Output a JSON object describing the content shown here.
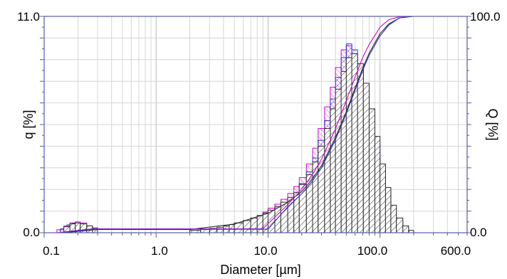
{
  "chart_data": {
    "type": "bar",
    "xlabel": "Diameter [µm]",
    "ylabel_left": "q [%]",
    "ylabel_right": "Q [%]",
    "x_scale": "log",
    "xlim": [
      0.1,
      600.0
    ],
    "ylim_left": [
      0.0,
      11.0
    ],
    "ylim_right": [
      0.0,
      100.0
    ],
    "x_tick_labels": [
      "0.1",
      "1.0",
      "10.0",
      "100.0",
      "600.0"
    ],
    "y_left_tick_labels": [
      "0.0",
      "11.0"
    ],
    "y_right_tick_labels": [
      "0.0",
      "100.0"
    ],
    "grid": true,
    "colors": {
      "frame": "#5b5ba8",
      "grid": "#c8c8c8",
      "series1": "#2b2b2b",
      "series2": "#d400d4",
      "series3": "#3030c0"
    },
    "series": [
      {
        "style": "black-hatched",
        "bins": [
          [
            0.15,
            0.17,
            0.3
          ],
          [
            0.17,
            0.19,
            0.45
          ],
          [
            0.19,
            0.21,
            0.5
          ],
          [
            0.21,
            0.24,
            0.45
          ],
          [
            0.24,
            0.27,
            0.35
          ],
          [
            0.27,
            0.3,
            0.25
          ],
          [
            2.0,
            2.5,
            0.12
          ],
          [
            2.5,
            3.0,
            0.17
          ],
          [
            3.0,
            3.5,
            0.22
          ],
          [
            3.5,
            4.0,
            0.28
          ],
          [
            4.0,
            4.5,
            0.34
          ],
          [
            4.5,
            5.0,
            0.41
          ],
          [
            5.0,
            6.0,
            0.5
          ],
          [
            6.0,
            7.0,
            0.62
          ],
          [
            7.0,
            8.0,
            0.75
          ],
          [
            8.0,
            9.0,
            0.88
          ],
          [
            9.0,
            10.0,
            1.0
          ],
          [
            10.0,
            11.5,
            1.15
          ],
          [
            11.5,
            13.0,
            1.33
          ],
          [
            13.0,
            15.0,
            1.55
          ],
          [
            15.0,
            17.0,
            1.8
          ],
          [
            17.0,
            19.0,
            2.05
          ],
          [
            19.0,
            22.0,
            2.45
          ],
          [
            22.0,
            25.0,
            2.95
          ],
          [
            25.0,
            28.0,
            3.6
          ],
          [
            28.0,
            32.0,
            4.4
          ],
          [
            32.0,
            36.0,
            5.3
          ],
          [
            36.0,
            40.0,
            6.3
          ],
          [
            40.0,
            45.0,
            7.3
          ],
          [
            45.0,
            50.0,
            8.2
          ],
          [
            50.0,
            56.0,
            8.9
          ],
          [
            56.0,
            63.0,
            9.1
          ],
          [
            63.0,
            71.0,
            8.6
          ],
          [
            71.0,
            80.0,
            7.6
          ],
          [
            80.0,
            90.0,
            6.3
          ],
          [
            90.0,
            100.0,
            4.9
          ],
          [
            100.0,
            112.0,
            3.5
          ],
          [
            112.0,
            125.0,
            2.3
          ],
          [
            125.0,
            140.0,
            1.4
          ],
          [
            140.0,
            160.0,
            0.75
          ],
          [
            160.0,
            180.0,
            0.35
          ],
          [
            180.0,
            200.0,
            0.12
          ]
        ]
      },
      {
        "style": "magenta-hatched",
        "bins": [
          [
            0.13,
            0.15,
            0.15
          ],
          [
            0.15,
            0.17,
            0.35
          ],
          [
            0.17,
            0.19,
            0.5
          ],
          [
            0.19,
            0.21,
            0.55
          ],
          [
            0.21,
            0.24,
            0.5
          ],
          [
            0.24,
            0.27,
            0.35
          ],
          [
            9.0,
            10.0,
            1.05
          ],
          [
            10.0,
            11.5,
            1.25
          ],
          [
            11.5,
            13.0,
            1.45
          ],
          [
            13.0,
            15.0,
            1.7
          ],
          [
            15.0,
            17.0,
            2.0
          ],
          [
            17.0,
            19.0,
            2.35
          ],
          [
            19.0,
            22.0,
            2.8
          ],
          [
            22.0,
            25.0,
            3.5
          ],
          [
            25.0,
            28.0,
            4.3
          ],
          [
            28.0,
            32.0,
            5.3
          ],
          [
            32.0,
            36.0,
            6.4
          ],
          [
            36.0,
            40.0,
            7.4
          ],
          [
            40.0,
            45.0,
            8.4
          ],
          [
            45.0,
            50.0,
            9.3
          ],
          [
            50.0,
            56.0,
            9.5
          ],
          [
            56.0,
            63.0,
            9.1
          ],
          [
            63.0,
            71.0,
            8.3
          ],
          [
            71.0,
            80.0,
            7.0
          ],
          [
            80.0,
            90.0,
            5.4
          ],
          [
            90.0,
            100.0,
            3.8
          ],
          [
            100.0,
            112.0,
            2.5
          ],
          [
            112.0,
            125.0,
            1.5
          ],
          [
            125.0,
            140.0,
            0.8
          ],
          [
            140.0,
            160.0,
            0.4
          ]
        ]
      },
      {
        "style": "blue-hatched",
        "bins": [
          [
            0.14,
            0.16,
            0.2
          ],
          [
            0.16,
            0.18,
            0.4
          ],
          [
            0.18,
            0.2,
            0.48
          ],
          [
            0.2,
            0.23,
            0.45
          ],
          [
            0.23,
            0.26,
            0.3
          ],
          [
            10.0,
            11.5,
            1.12
          ],
          [
            11.5,
            13.0,
            1.3
          ],
          [
            13.0,
            15.0,
            1.5
          ],
          [
            15.0,
            17.0,
            1.78
          ],
          [
            17.0,
            19.0,
            2.05
          ],
          [
            19.0,
            22.0,
            2.5
          ],
          [
            22.0,
            25.0,
            3.1
          ],
          [
            25.0,
            28.0,
            3.8
          ],
          [
            28.0,
            32.0,
            4.7
          ],
          [
            32.0,
            36.0,
            5.7
          ],
          [
            36.0,
            40.0,
            6.8
          ],
          [
            40.0,
            45.0,
            7.9
          ],
          [
            45.0,
            50.0,
            8.9
          ],
          [
            50.0,
            56.0,
            9.6
          ],
          [
            56.0,
            63.0,
            9.3
          ],
          [
            63.0,
            71.0,
            8.5
          ],
          [
            71.0,
            80.0,
            7.4
          ],
          [
            80.0,
            90.0,
            6.0
          ],
          [
            90.0,
            100.0,
            4.5
          ],
          [
            100.0,
            112.0,
            3.2
          ],
          [
            112.0,
            125.0,
            2.1
          ],
          [
            125.0,
            140.0,
            1.25
          ],
          [
            140.0,
            160.0,
            0.6
          ],
          [
            160.0,
            180.0,
            0.3
          ]
        ]
      }
    ],
    "cumulative": [
      {
        "style": "black",
        "x": [
          0.15,
          0.3,
          2.0,
          5.0,
          10.0,
          15.0,
          20.0,
          25.0,
          30.0,
          40.0,
          50.0,
          60.0,
          70.0,
          80.0,
          100.0,
          120.0,
          150.0,
          200.0
        ],
        "y": [
          0,
          1.5,
          1.5,
          4,
          9,
          14,
          19,
          25,
          31,
          44,
          56,
          67,
          76,
          83,
          92,
          96.5,
          99.3,
          100
        ]
      },
      {
        "style": "magenta",
        "x": [
          0.13,
          0.27,
          9.0,
          15.0,
          20.0,
          25.0,
          30.0,
          40.0,
          50.0,
          60.0,
          70.0,
          80.0,
          100.0,
          120.0,
          150.0,
          170.0
        ],
        "y": [
          0,
          1.8,
          1.8,
          13,
          20,
          27,
          34,
          48,
          61,
          72,
          81,
          87,
          95,
          98.5,
          99.8,
          100
        ]
      },
      {
        "style": "blue",
        "x": [
          0.14,
          0.26,
          10.0,
          15.0,
          20.0,
          25.0,
          30.0,
          40.0,
          50.0,
          60.0,
          70.0,
          80.0,
          100.0,
          120.0,
          150.0,
          180.0
        ],
        "y": [
          0,
          1.6,
          1.6,
          12,
          18,
          24,
          30,
          43,
          55,
          66,
          75,
          82,
          91,
          96,
          99.3,
          100
        ]
      }
    ]
  }
}
